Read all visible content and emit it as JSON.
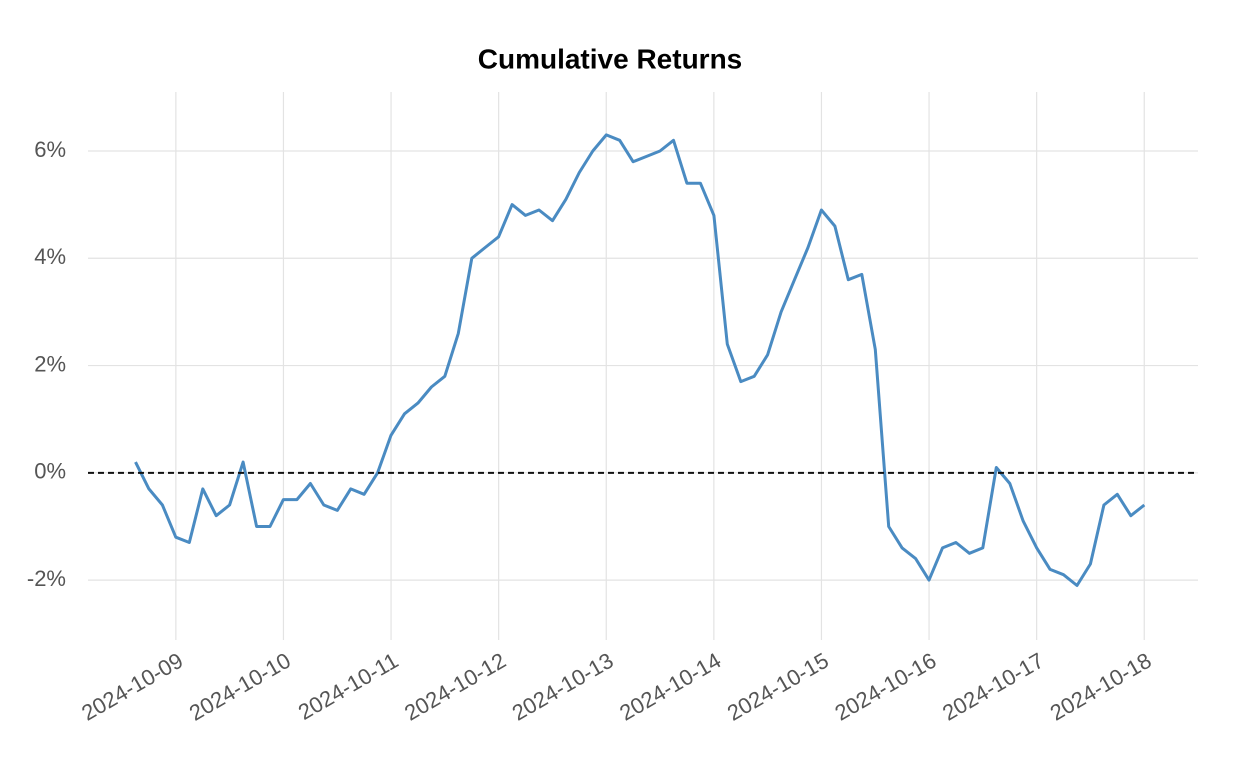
{
  "chart_data": {
    "type": "line",
    "title": "Cumulative Returns",
    "categories": [
      null,
      null,
      null,
      "2024-10-09",
      null,
      null,
      null,
      null,
      null,
      null,
      null,
      "2024-10-10",
      null,
      null,
      null,
      null,
      null,
      null,
      null,
      "2024-10-11",
      null,
      null,
      null,
      null,
      null,
      null,
      null,
      "2024-10-12",
      null,
      null,
      null,
      null,
      null,
      null,
      null,
      "2024-10-13",
      null,
      null,
      null,
      null,
      null,
      null,
      null,
      "2024-10-14",
      null,
      null,
      null,
      null,
      null,
      null,
      null,
      "2024-10-15",
      null,
      null,
      null,
      null,
      null,
      null,
      null,
      "2024-10-16",
      null,
      null,
      null,
      null,
      null,
      null,
      null,
      "2024-10-17",
      null,
      null,
      null,
      null,
      null,
      null,
      null,
      "2024-10-18"
    ],
    "values": [
      0.2,
      -0.3,
      -0.6,
      -1.2,
      -1.3,
      -0.3,
      -0.8,
      -0.6,
      0.2,
      -1.0,
      -1.0,
      -0.5,
      -0.5,
      -0.2,
      -0.6,
      -0.7,
      -0.3,
      -0.4,
      0.0,
      0.7,
      1.1,
      1.3,
      1.6,
      1.8,
      2.6,
      4.0,
      4.2,
      4.4,
      5.0,
      4.8,
      4.9,
      4.7,
      5.1,
      5.6,
      6.0,
      6.3,
      6.2,
      5.8,
      5.9,
      6.0,
      6.2,
      5.4,
      5.4,
      4.8,
      2.4,
      1.7,
      1.8,
      2.2,
      3.0,
      3.6,
      4.2,
      4.9,
      4.6,
      3.6,
      3.7,
      2.3,
      -1.0,
      -1.4,
      -1.6,
      -2.0,
      -1.4,
      -1.3,
      -1.5,
      -1.4,
      0.1,
      -0.2,
      -0.9,
      -1.4,
      -1.8,
      -1.9,
      -2.1,
      -1.7,
      -0.6,
      -0.4,
      -0.8,
      -0.6
    ],
    "color": "#4a8bc2",
    "ylim": [
      -2.8,
      7.1
    ],
    "yticks": [
      {
        "value": -2,
        "label": "-2%"
      },
      {
        "value": 0,
        "label": "0%"
      },
      {
        "value": 2,
        "label": "2%"
      },
      {
        "value": 4,
        "label": "4%"
      },
      {
        "value": 6,
        "label": "6%"
      }
    ],
    "reference_line": 0,
    "grid": true
  }
}
